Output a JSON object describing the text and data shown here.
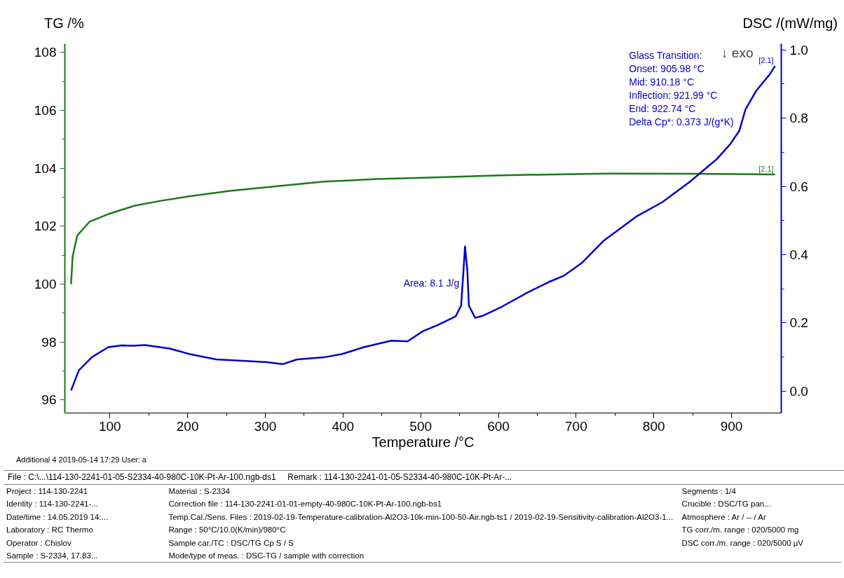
{
  "chart_data": {
    "type": "line",
    "xlabel": "Temperature /°C",
    "ylabel": "TG /%",
    "y2label": "DSC /(mW/mg)",
    "xlim": [
      42,
      964
    ],
    "xticks": [
      100,
      200,
      300,
      400,
      500,
      600,
      700,
      800,
      900
    ],
    "ylim": [
      95.55,
      108.3
    ],
    "yticks": [
      96,
      98,
      100,
      102,
      104,
      106,
      108
    ],
    "y2lim": [
      -0.064,
      1.018
    ],
    "y2ticks": [
      {
        "value": 0,
        "label": "0.0"
      },
      {
        "value": 0.2,
        "label": "0.2"
      },
      {
        "value": 0.4,
        "label": "0.4"
      },
      {
        "value": 0.6,
        "label": "0.6"
      },
      {
        "value": 0.8,
        "label": "0.8"
      },
      {
        "value": 1,
        "label": "1.0"
      }
    ],
    "grid": false,
    "series": [
      {
        "name": "[2.1]",
        "color": "#1a7a1a",
        "x": [
          50,
          52,
          58,
          74,
          98,
          132,
          168,
          202,
          254,
          306,
          375,
          444,
          503,
          604,
          740,
          846,
          956
        ],
        "values": [
          100.0,
          100.95,
          101.68,
          102.16,
          102.42,
          102.71,
          102.89,
          103.03,
          103.22,
          103.36,
          103.54,
          103.63,
          103.67,
          103.76,
          103.82,
          103.81,
          103.79
        ]
      },
      {
        "name": "[2.1]",
        "color": "#0000c8",
        "axis": "y2",
        "x": [
          50,
          60,
          77,
          98,
          115,
          130,
          145,
          177,
          202,
          237,
          271,
          303,
          322,
          341,
          375,
          399,
          427,
          462,
          483,
          503,
          521,
          545,
          552,
          555,
          557,
          560,
          562,
          570,
          580,
          604,
          639,
          667,
          684,
          708,
          735,
          777,
          811,
          846,
          881,
          898,
          910,
          918,
          932,
          949,
          956
        ],
        "values": [
          0.002,
          0.061,
          0.1,
          0.129,
          0.134,
          0.133,
          0.135,
          0.125,
          0.109,
          0.093,
          0.089,
          0.085,
          0.079,
          0.093,
          0.099,
          0.109,
          0.129,
          0.148,
          0.146,
          0.176,
          0.193,
          0.219,
          0.251,
          0.353,
          0.424,
          0.353,
          0.251,
          0.215,
          0.221,
          0.247,
          0.291,
          0.322,
          0.338,
          0.377,
          0.44,
          0.511,
          0.554,
          0.613,
          0.68,
          0.723,
          0.763,
          0.826,
          0.881,
          0.928,
          0.953
        ]
      }
    ],
    "annotations": [
      "Area: 8.1 J/g",
      "Glass Transition:",
      "Onset:         905.98 °C",
      "Mid:             910.18 °C",
      "Inflection:   921.99 °C",
      "End:             922.74 °C",
      "Delta Cp*:      0.373 J/(g*K)",
      "↓ exo",
      "Additional 4   2019-05-14 17:29   User: a",
      "File : C:\\...\\114-130-2241-01-05-S2334-40-980C-10K-Pt-Ar-100.ngb-ds1",
      "Remark : 114-130-2241-01-05-S2334-40-980C-10K-Pt-Ar-...",
      "Project : 114-130-2241",
      "Material : S-2334",
      "Segments : 1/4",
      "Identity : 114-130-2241-...",
      "Correction file : 114-130-2241-01-01-empty-40-980C-10K-Pt-Ar-100.ngb-bs1",
      "Crucible : DSC/TG pan...",
      "Date/time : 14.05.2019 14:...",
      "Temp.Cal./Sens. Files : 2019-02-19-Temperature-calibration-Al2O3-10k-min-100-50-Air.ngb-ts1 / 2019-02-19-Sensitivity-calibration-Al2O3-1...",
      "Atmosphere : Ar / -- / Ar",
      "Laboratory : RC Thermo",
      "Range : 50°C/10.0(K/min)/980°C",
      "TG corr./m. range : 020/5000 mg",
      "Operator : Chislov",
      "Sample car./TC : DSC/TG Cp S / S",
      "DSC corr./m. range : 020/5000 µV",
      "Sample : S-2334, 17.83...",
      "Mode/type of meas. : DSC-TG / sample with correction"
    ]
  }
}
